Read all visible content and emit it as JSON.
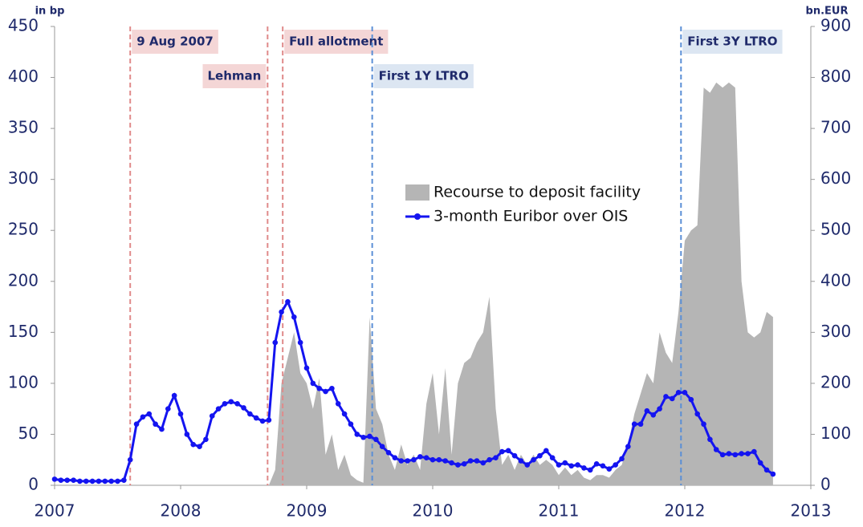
{
  "chart_data": {
    "type": "line",
    "y_unit": "in bp",
    "y2_unit": "bn.EUR",
    "xlim": [
      2007,
      2013
    ],
    "xticks": [
      2007,
      2008,
      2009,
      2010,
      2011,
      2012,
      2013
    ],
    "ylim": [
      0,
      450
    ],
    "yticks": [
      0,
      50,
      100,
      150,
      200,
      250,
      300,
      350,
      400,
      450
    ],
    "y2lim": [
      0,
      900
    ],
    "y2ticks": [
      0,
      100,
      200,
      300,
      400,
      500,
      600,
      700,
      800,
      900
    ],
    "legend": "center",
    "x": [
      2007.0,
      2007.05,
      2007.1,
      2007.15,
      2007.2,
      2007.25,
      2007.3,
      2007.35,
      2007.4,
      2007.45,
      2007.5,
      2007.55,
      2007.6,
      2007.65,
      2007.7,
      2007.75,
      2007.8,
      2007.85,
      2007.9,
      2007.95,
      2008.0,
      2008.05,
      2008.1,
      2008.15,
      2008.2,
      2008.25,
      2008.3,
      2008.35,
      2008.4,
      2008.45,
      2008.5,
      2008.55,
      2008.6,
      2008.65,
      2008.7,
      2008.75,
      2008.8,
      2008.85,
      2008.9,
      2008.95,
      2009.0,
      2009.05,
      2009.1,
      2009.15,
      2009.2,
      2009.25,
      2009.3,
      2009.35,
      2009.4,
      2009.45,
      2009.5,
      2009.55,
      2009.6,
      2009.65,
      2009.7,
      2009.75,
      2009.8,
      2009.85,
      2009.9,
      2009.95,
      2010.0,
      2010.05,
      2010.1,
      2010.15,
      2010.2,
      2010.25,
      2010.3,
      2010.35,
      2010.4,
      2010.45,
      2010.5,
      2010.55,
      2010.6,
      2010.65,
      2010.7,
      2010.75,
      2010.8,
      2010.85,
      2010.9,
      2010.95,
      2011.0,
      2011.05,
      2011.1,
      2011.15,
      2011.2,
      2011.25,
      2011.3,
      2011.35,
      2011.4,
      2011.45,
      2011.5,
      2011.55,
      2011.6,
      2011.65,
      2011.7,
      2011.75,
      2011.8,
      2011.85,
      2011.9,
      2011.95,
      2012.0,
      2012.05,
      2012.1,
      2012.15,
      2012.2,
      2012.25,
      2012.3,
      2012.35,
      2012.4,
      2012.45,
      2012.5,
      2012.55,
      2012.6,
      2012.65,
      2012.7
    ],
    "series": [
      {
        "name": "Recourse to deposit facility",
        "color": "#b5b5b5",
        "axis": "y2",
        "kind": "area",
        "values": [
          0,
          0,
          0,
          0,
          0,
          0,
          0,
          0,
          0,
          0,
          0,
          0,
          0,
          0,
          0,
          0,
          0,
          0,
          0,
          0,
          0,
          0,
          0,
          0,
          0,
          0,
          0,
          0,
          0,
          0,
          0,
          0,
          0,
          0,
          0,
          30,
          200,
          250,
          300,
          220,
          200,
          150,
          210,
          60,
          100,
          30,
          60,
          20,
          10,
          5,
          330,
          150,
          120,
          60,
          30,
          80,
          40,
          60,
          30,
          160,
          220,
          100,
          230,
          60,
          200,
          240,
          250,
          280,
          300,
          370,
          150,
          40,
          60,
          30,
          60,
          40,
          60,
          40,
          50,
          40,
          20,
          35,
          20,
          30,
          15,
          10,
          20,
          20,
          15,
          30,
          40,
          80,
          140,
          180,
          220,
          200,
          300,
          260,
          240,
          340,
          480,
          500,
          510,
          780,
          770,
          790,
          780,
          790,
          780,
          400,
          300,
          290,
          300,
          340,
          330
        ]
      },
      {
        "name": "3-month Euribor over OIS",
        "color": "#1414f0",
        "axis": "y",
        "kind": "line",
        "values": [
          6,
          5,
          5,
          5,
          4,
          4,
          4,
          4,
          4,
          4,
          4,
          5,
          25,
          60,
          67,
          70,
          60,
          55,
          75,
          88,
          70,
          50,
          40,
          38,
          45,
          68,
          75,
          80,
          82,
          80,
          76,
          70,
          66,
          63,
          64,
          140,
          170,
          180,
          165,
          140,
          115,
          100,
          95,
          92,
          95,
          80,
          70,
          60,
          50,
          47,
          48,
          45,
          38,
          32,
          27,
          24,
          24,
          25,
          28,
          27,
          25,
          25,
          24,
          22,
          20,
          21,
          24,
          24,
          22,
          25,
          27,
          33,
          34,
          29,
          24,
          20,
          25,
          29,
          34,
          27,
          20,
          22,
          19,
          20,
          17,
          15,
          21,
          19,
          16,
          20,
          26,
          38,
          60,
          60,
          73,
          69,
          75,
          87,
          85,
          91,
          91,
          84,
          70,
          60,
          45,
          35,
          30,
          31,
          30,
          31,
          31,
          33,
          22,
          15,
          11
        ]
      }
    ],
    "annotations": [
      {
        "x": 2007.6,
        "label": "9 Aug 2007",
        "color": "#e08a8a",
        "background": "#f4d6d6"
      },
      {
        "x": 2008.69,
        "label": "Lehman",
        "color": "#e08a8a",
        "background": "#f4d6d6"
      },
      {
        "x": 2008.81,
        "label": "Full allotment",
        "color": "#e08a8a",
        "background": "#f4d6d6"
      },
      {
        "x": 2009.52,
        "label": "First 1Y LTRO",
        "color": "#5b8fd6",
        "background": "#dce6f2"
      },
      {
        "x": 2011.97,
        "label": "First 3Y LTRO",
        "color": "#5b8fd6",
        "background": "#dce6f2"
      }
    ]
  }
}
